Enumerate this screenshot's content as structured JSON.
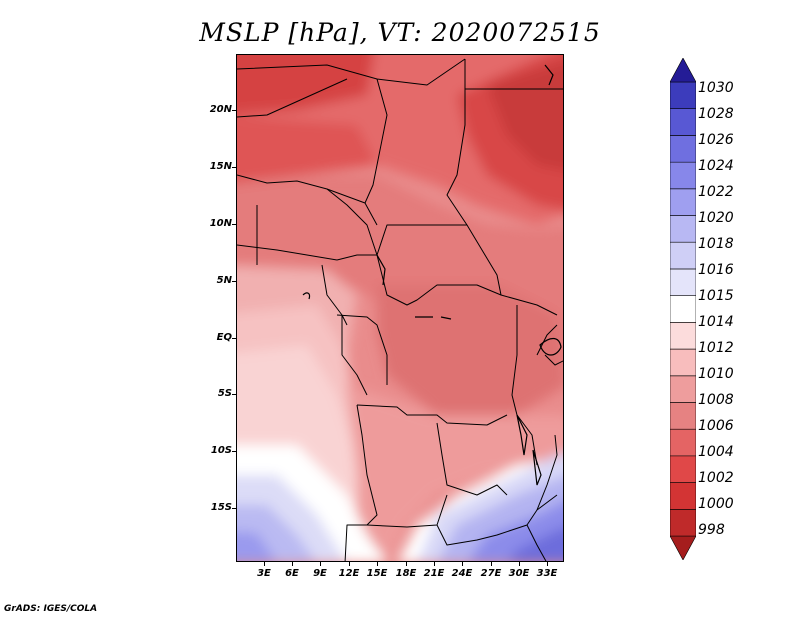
{
  "title": "MSLP [hPa], VT: 2020072515",
  "credit": "GrADS: IGES/COLA",
  "lat_labels": [
    "20N",
    "15N",
    "10N",
    "5N",
    "EQ",
    "5S",
    "10S",
    "15S"
  ],
  "lon_labels": [
    "3E",
    "6E",
    "9E",
    "12E",
    "15E",
    "18E",
    "21E",
    "24E",
    "27E",
    "30E",
    "33E"
  ],
  "colorbar": {
    "levels": [
      "998",
      "1000",
      "1002",
      "1004",
      "1006",
      "1008",
      "1010",
      "1012",
      "1014",
      "1015",
      "1016",
      "1018",
      "1020",
      "1022",
      "1024",
      "1026",
      "1028",
      "1030"
    ],
    "colors": [
      "#a51d1d",
      "#bf2a2a",
      "#d33434",
      "#e04848",
      "#e46464",
      "#e68282",
      "#ee9d9d",
      "#f8bdbd",
      "#fcdcdc",
      "#ffffff",
      "#e4e4fa",
      "#cfcff6",
      "#b8b8f3",
      "#9f9ff0",
      "#8787ea",
      "#6f6fe0",
      "#5858d4",
      "#3c3cbc",
      "#241c96"
    ]
  }
}
